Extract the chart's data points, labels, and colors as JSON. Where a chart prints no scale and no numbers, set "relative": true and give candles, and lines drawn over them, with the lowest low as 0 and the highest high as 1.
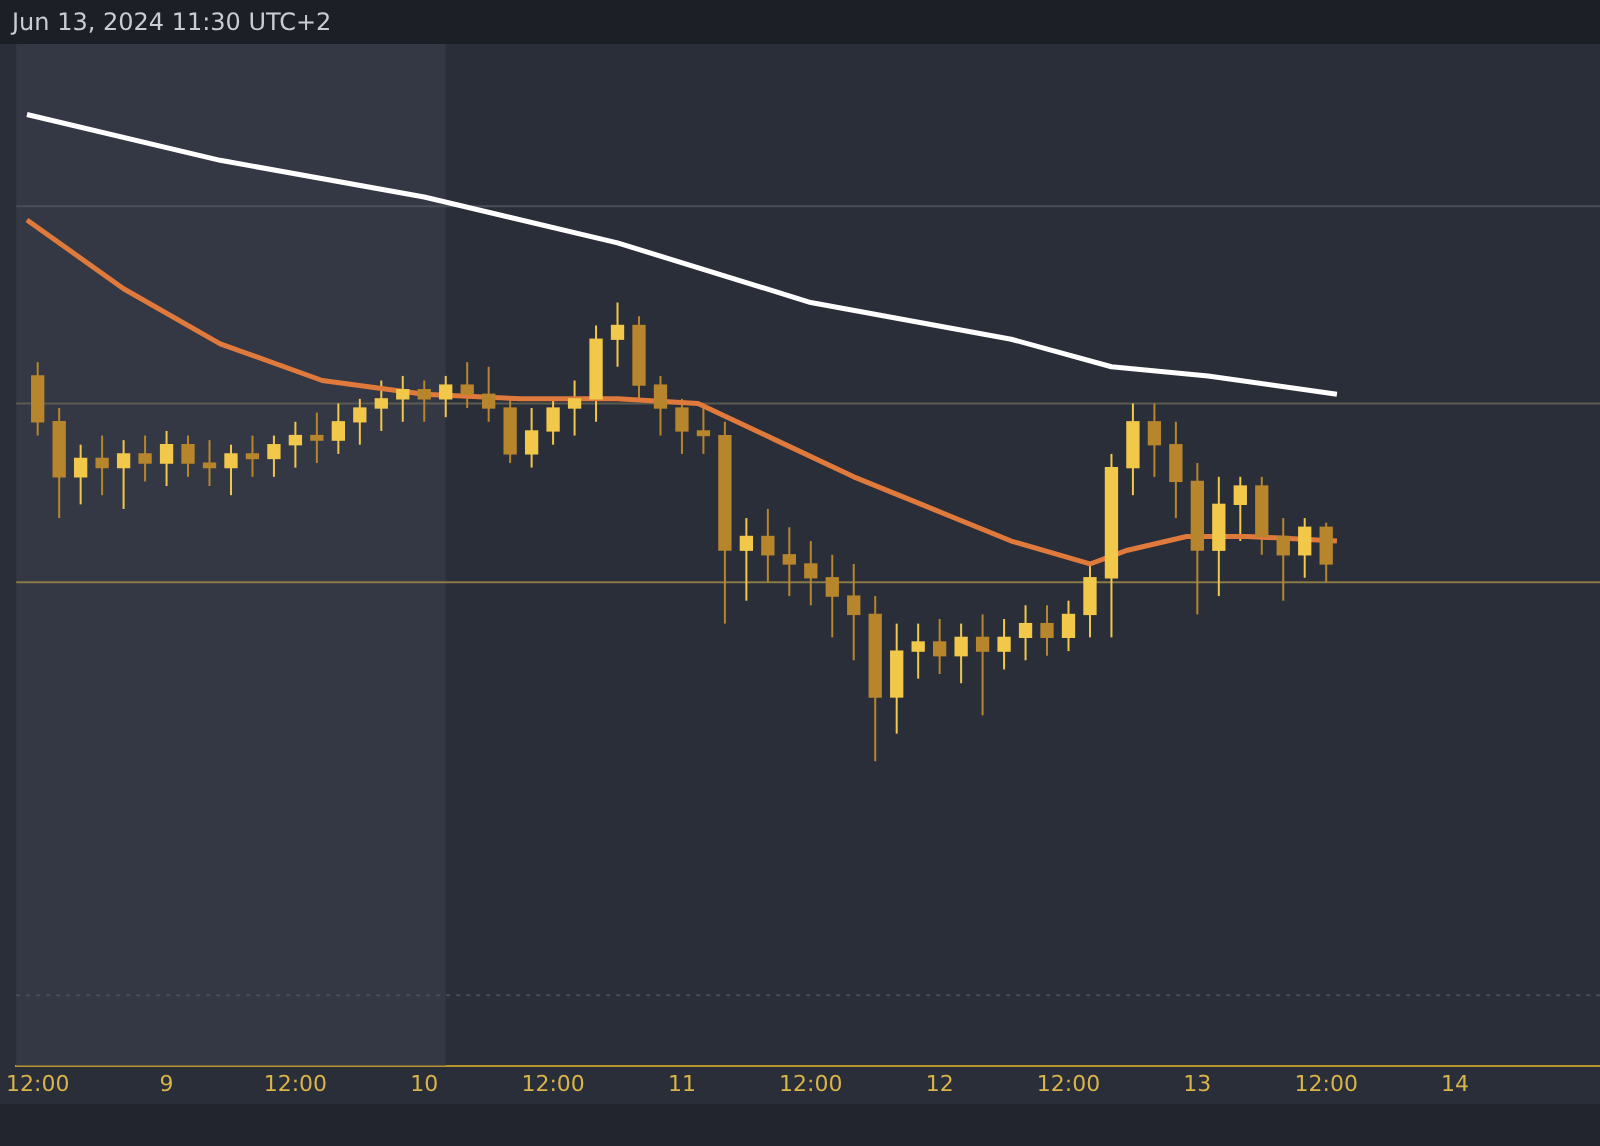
{
  "chart_data": {
    "type": "candlestick",
    "title": "Jun 13, 2024 11:30 UTC+2",
    "relative": true,
    "colors": [
      "#b7862c",
      "#b7862c",
      "#f2c84b",
      "#b7862c",
      "#f2c84b",
      "#b7862c",
      "#f2c84b",
      "#b7862c",
      "#b7862c",
      "#f2c84b",
      "#b7862c",
      "#f2c84b",
      "#f2c84b",
      "#b7862c",
      "#f2c84b",
      "#f2c84b",
      "#f2c84b",
      "#f2c84b",
      "#b7862c",
      "#f2c84b",
      "#b7862c",
      "#b7862c",
      "#b7862c",
      "#f2c84b",
      "#f2c84b",
      "#f2c84b",
      "#f2c84b",
      "#f2c84b",
      "#b7862c",
      "#b7862c",
      "#b7862c",
      "#b7862c",
      "#b7862c",
      "#f2c84b",
      "#b7862c",
      "#b7862c",
      "#b7862c",
      "#b7862c",
      "#b7862c",
      "#b7862c",
      "#f2c84b",
      "#f2c84b",
      "#b7862c",
      "#f2c84b",
      "#b7862c",
      "#f2c84b",
      "#f2c84b",
      "#b7862c",
      "#f2c84b",
      "#f2c84b",
      "#f2c84b",
      "#f2c84b",
      "#b7862c",
      "#b7862c",
      "#b7862c",
      "#f2c84b",
      "#f2c84b",
      "#b7862c",
      "#b7862c",
      "#f2c84b",
      "#b7862c"
    ],
    "legend": false,
    "grid": false,
    "x": [
      "2024-06-08T12:00",
      "2024-06-08T14:00",
      "2024-06-08T16:00",
      "2024-06-08T18:00",
      "2024-06-08T20:00",
      "2024-06-08T22:00",
      "2024-06-09T00:00",
      "2024-06-09T02:00",
      "2024-06-09T04:00",
      "2024-06-09T06:00",
      "2024-06-09T08:00",
      "2024-06-09T10:00",
      "2024-06-09T12:00",
      "2024-06-09T14:00",
      "2024-06-09T16:00",
      "2024-06-09T18:00",
      "2024-06-09T20:00",
      "2024-06-09T22:00",
      "2024-06-10T00:00",
      "2024-06-10T02:00",
      "2024-06-10T04:00",
      "2024-06-10T06:00",
      "2024-06-10T08:00",
      "2024-06-10T10:00",
      "2024-06-10T12:00",
      "2024-06-10T14:00",
      "2024-06-10T16:00",
      "2024-06-10T18:00",
      "2024-06-10T20:00",
      "2024-06-10T22:00",
      "2024-06-11T00:00",
      "2024-06-11T02:00",
      "2024-06-11T04:00",
      "2024-06-11T06:00",
      "2024-06-11T08:00",
      "2024-06-11T10:00",
      "2024-06-11T12:00",
      "2024-06-11T14:00",
      "2024-06-11T16:00",
      "2024-06-11T18:00",
      "2024-06-11T20:00",
      "2024-06-11T22:00",
      "2024-06-12T00:00",
      "2024-06-12T02:00",
      "2024-06-12T04:00",
      "2024-06-12T06:00",
      "2024-06-12T08:00",
      "2024-06-12T10:00",
      "2024-06-12T12:00",
      "2024-06-12T14:00",
      "2024-06-12T16:00",
      "2024-06-12T18:00",
      "2024-06-12T20:00",
      "2024-06-12T22:00",
      "2024-06-13T00:00",
      "2024-06-13T02:00",
      "2024-06-13T04:00",
      "2024-06-13T06:00",
      "2024-06-13T08:00",
      "2024-06-13T10:00",
      "2024-06-13T12:00"
    ],
    "ohlc": [
      [
        0.84,
        0.87,
        0.71,
        0.74
      ],
      [
        0.74,
        0.77,
        0.53,
        0.62
      ],
      [
        0.62,
        0.69,
        0.56,
        0.66
      ],
      [
        0.66,
        0.71,
        0.58,
        0.64
      ],
      [
        0.64,
        0.7,
        0.55,
        0.67
      ],
      [
        0.67,
        0.71,
        0.61,
        0.65
      ],
      [
        0.65,
        0.72,
        0.6,
        0.69
      ],
      [
        0.69,
        0.71,
        0.62,
        0.65
      ],
      [
        0.65,
        0.7,
        0.6,
        0.64
      ],
      [
        0.64,
        0.69,
        0.58,
        0.67
      ],
      [
        0.67,
        0.71,
        0.62,
        0.66
      ],
      [
        0.66,
        0.71,
        0.62,
        0.69
      ],
      [
        0.69,
        0.74,
        0.64,
        0.71
      ],
      [
        0.71,
        0.76,
        0.65,
        0.7
      ],
      [
        0.7,
        0.78,
        0.67,
        0.74
      ],
      [
        0.74,
        0.79,
        0.69,
        0.77
      ],
      [
        0.77,
        0.83,
        0.72,
        0.79
      ],
      [
        0.79,
        0.84,
        0.74,
        0.81
      ],
      [
        0.81,
        0.83,
        0.74,
        0.79
      ],
      [
        0.79,
        0.84,
        0.75,
        0.82
      ],
      [
        0.82,
        0.87,
        0.77,
        0.8
      ],
      [
        0.8,
        0.86,
        0.74,
        0.77
      ],
      [
        0.77,
        0.79,
        0.65,
        0.67
      ],
      [
        0.67,
        0.77,
        0.64,
        0.72
      ],
      [
        0.72,
        0.79,
        0.69,
        0.77
      ],
      [
        0.77,
        0.83,
        0.71,
        0.79
      ],
      [
        0.79,
        0.95,
        0.74,
        0.92
      ],
      [
        0.92,
        1.0,
        0.86,
        0.95
      ],
      [
        0.95,
        0.97,
        0.79,
        0.82
      ],
      [
        0.82,
        0.84,
        0.71,
        0.77
      ],
      [
        0.77,
        0.79,
        0.67,
        0.72
      ],
      [
        0.72,
        0.78,
        0.67,
        0.71
      ],
      [
        0.71,
        0.74,
        0.3,
        0.46
      ],
      [
        0.46,
        0.53,
        0.35,
        0.49
      ],
      [
        0.49,
        0.55,
        0.39,
        0.45
      ],
      [
        0.45,
        0.51,
        0.36,
        0.43
      ],
      [
        0.43,
        0.48,
        0.34,
        0.4
      ],
      [
        0.4,
        0.45,
        0.27,
        0.36
      ],
      [
        0.36,
        0.43,
        0.22,
        0.32
      ],
      [
        0.32,
        0.36,
        0,
        0.14
      ],
      [
        0.14,
        0.3,
        0.06,
        0.24
      ],
      [
        0.24,
        0.3,
        0.18,
        0.26
      ],
      [
        0.26,
        0.31,
        0.19,
        0.23
      ],
      [
        0.23,
        0.3,
        0.17,
        0.27
      ],
      [
        0.27,
        0.32,
        0.1,
        0.24
      ],
      [
        0.24,
        0.31,
        0.2,
        0.27
      ],
      [
        0.27,
        0.34,
        0.22,
        0.3
      ],
      [
        0.3,
        0.34,
        0.23,
        0.27
      ],
      [
        0.27,
        0.35,
        0.24,
        0.32
      ],
      [
        0.32,
        0.43,
        0.27,
        0.4
      ],
      [
        0.4,
        0.67,
        0.27,
        0.64
      ],
      [
        0.64,
        0.78,
        0.58,
        0.74
      ],
      [
        0.74,
        0.78,
        0.62,
        0.69
      ],
      [
        0.69,
        0.74,
        0.53,
        0.61
      ],
      [
        0.61,
        0.65,
        0.32,
        0.46
      ],
      [
        0.46,
        0.62,
        0.36,
        0.56
      ],
      [
        0.56,
        0.62,
        0.48,
        0.6
      ],
      [
        0.6,
        0.62,
        0.45,
        0.49
      ],
      [
        0.49,
        0.53,
        0.35,
        0.45
      ],
      [
        0.45,
        0.53,
        0.4,
        0.51
      ],
      [
        0.51,
        0.52,
        0.39,
        0.43
      ]
    ],
    "series": [
      {
        "type": "line",
        "color": "#e07a3c",
        "x": [
          "2024-06-08T11:00",
          "2024-06-08T20:00",
          "2024-06-09T05:00",
          "2024-06-09T14:30",
          "2024-06-10T00:00",
          "2024-06-10T09:00",
          "2024-06-10T18:00",
          "2024-06-11T01:30",
          "2024-06-11T08:45",
          "2024-06-11T16:00",
          "2024-06-11T23:20",
          "2024-06-12T06:40",
          "2024-06-12T14:00",
          "2024-06-12T17:30",
          "2024-06-12T23:00",
          "2024-06-13T04:40",
          "2024-06-13T13:00"
        ],
        "values": [
          1.18,
          1.03,
          0.91,
          0.83,
          0.8,
          0.79,
          0.79,
          0.78,
          0.7,
          0.62,
          0.55,
          0.48,
          0.43,
          0.46,
          0.49,
          0.49,
          0.48
        ]
      },
      {
        "type": "line",
        "color": "#ffffff",
        "x": [
          "2024-06-08T11:00",
          "2024-06-09T05:00",
          "2024-06-10T00:00",
          "2024-06-10T18:00",
          "2024-06-11T12:00",
          "2024-06-12T06:40",
          "2024-06-12T16:00",
          "2024-06-13T01:00",
          "2024-06-13T13:00"
        ],
        "values": [
          1.41,
          1.31,
          1.23,
          1.13,
          1.0,
          0.92,
          0.86,
          0.84,
          0.8
        ]
      }
    ],
    "xlim": [
      "2024-06-08T10:00",
      "2024-06-14T13:30"
    ],
    "xticks": [
      {
        "value": "2024-06-08T12:00",
        "label": "12:00"
      },
      {
        "value": "2024-06-09T00:00",
        "label": "9"
      },
      {
        "value": "2024-06-09T12:00",
        "label": "12:00"
      },
      {
        "value": "2024-06-10T00:00",
        "label": "10"
      },
      {
        "value": "2024-06-10T12:00",
        "label": "12:00"
      },
      {
        "value": "2024-06-11T00:00",
        "label": "11"
      },
      {
        "value": "2024-06-11T12:00",
        "label": "12:00"
      },
      {
        "value": "2024-06-12T00:00",
        "label": "12"
      },
      {
        "value": "2024-06-12T12:00",
        "label": "12:00"
      },
      {
        "value": "2024-06-13T00:00",
        "label": "13"
      },
      {
        "value": "2024-06-13T12:00",
        "label": "12:00"
      },
      {
        "value": "2024-06-14T00:00",
        "label": "14"
      }
    ],
    "ref_lines": [
      {
        "axis": "y",
        "value": 1.21,
        "color": "#4a4e58",
        "line_style": "solid"
      },
      {
        "axis": "y",
        "value": 0.78,
        "color": "#5a5a50",
        "line_style": "solid"
      },
      {
        "axis": "y",
        "value": 0.39,
        "color": "#8a7a48",
        "line_style": "solid"
      },
      {
        "axis": "y",
        "value": -0.51,
        "color": "#4a4e58",
        "line_style": "dotted"
      }
    ],
    "bands": [
      {
        "axis": "x",
        "from": "2024-06-08T10:00",
        "to": "2024-06-10T02:00",
        "color": "#343844"
      }
    ]
  }
}
